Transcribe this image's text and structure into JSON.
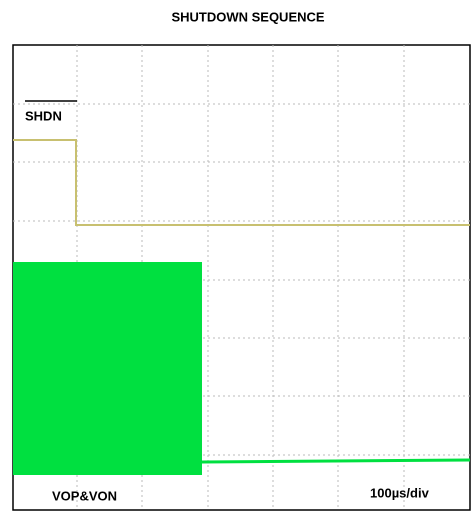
{
  "figure": {
    "title": "SHUTDOWN SEQUENCE",
    "signal_label": "SHDN",
    "trace_label": "VOP&VON",
    "timebase": "100µs/div"
  }
}
